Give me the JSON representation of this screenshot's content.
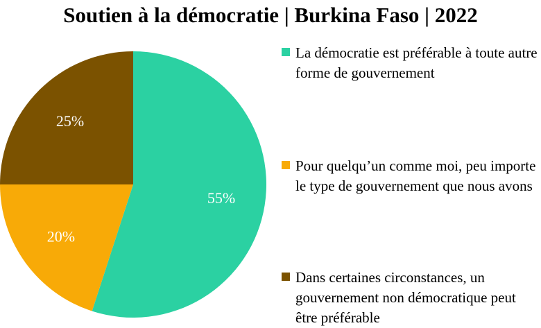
{
  "chart_data": {
    "type": "pie",
    "title": "Soutien à la démocratie | Burkina Faso | 2022",
    "slices": [
      {
        "label": "La démocratie est préférable à toute autre forme de gouvernement",
        "value": 55,
        "display": "55%",
        "color": "#2BD1A2"
      },
      {
        "label": "Pour quelqu’un comme moi, peu importe le type de gouvernement que nous avons",
        "value": 20,
        "display": "20%",
        "color": "#F8AA07"
      },
      {
        "label": "Dans certaines circonstances, un gouvernement non démocratique peut être préférable",
        "value": 25,
        "display": "25%",
        "color": "#7B5200"
      }
    ],
    "legend_position": "right",
    "start_angle_deg": 0,
    "direction": "clockwise"
  }
}
